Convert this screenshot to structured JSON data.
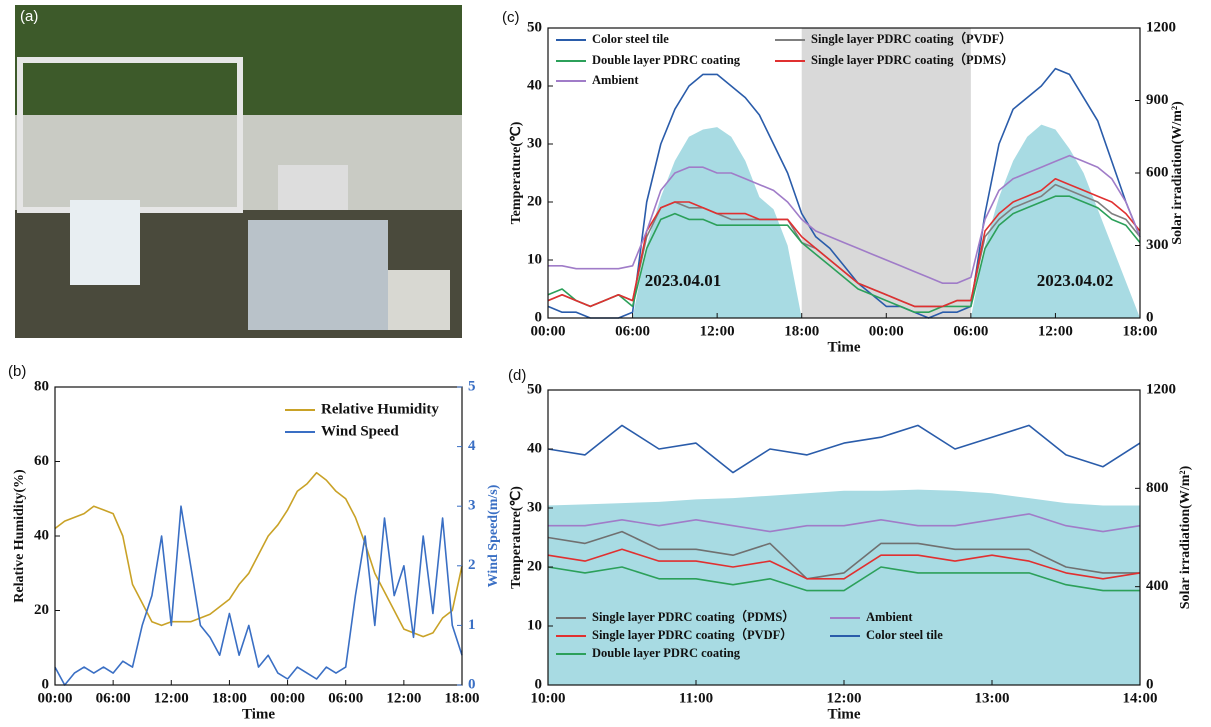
{
  "photo_label": "(a)",
  "chart_data": [
    {
      "type": "line",
      "panel_label": "(b)",
      "x_label": "Time",
      "y_label": "Relative Humidity(%)",
      "y2_label": "Wind Speed(m/s)",
      "legend": "upper right",
      "x": [
        0,
        1,
        2,
        3,
        4,
        5,
        6,
        7,
        8,
        9,
        10,
        11,
        12,
        13,
        14,
        15,
        16,
        17,
        18,
        19,
        20,
        21,
        22,
        23,
        24,
        25,
        26,
        27,
        28,
        29,
        30,
        31,
        32,
        33,
        34,
        35,
        36,
        37,
        38,
        39,
        40,
        41,
        42
      ],
      "xlim": [
        0,
        42
      ],
      "xticks": [
        {
          "value": 0,
          "label": "00:00"
        },
        {
          "value": 6,
          "label": "06:00"
        },
        {
          "value": 12,
          "label": "12:00"
        },
        {
          "value": 18,
          "label": "18:00"
        },
        {
          "value": 24,
          "label": "00:00"
        },
        {
          "value": 30,
          "label": "06:00"
        },
        {
          "value": 36,
          "label": "12:00"
        },
        {
          "value": 42,
          "label": "18:00"
        }
      ],
      "ylim": [
        0,
        80
      ],
      "yticks": [
        0,
        20,
        40,
        60,
        80
      ],
      "y2lim": [
        0,
        5
      ],
      "y2ticks": [
        0,
        1,
        2,
        3,
        4,
        5
      ],
      "y2_color": "#3a6fc4",
      "series": [
        {
          "name": "Relative Humidity",
          "color": "#c9a227",
          "values": [
            42,
            44,
            45,
            46,
            48,
            47,
            46,
            40,
            27,
            22,
            17,
            16,
            17,
            17,
            17,
            18,
            19,
            21,
            23,
            27,
            30,
            35,
            40,
            43,
            47,
            52,
            54,
            57,
            55,
            52,
            50,
            45,
            38,
            30,
            25,
            20,
            15,
            14,
            13,
            14,
            18,
            20,
            32
          ]
        },
        {
          "name": "Wind Speed",
          "color": "#3a6fc4",
          "axis": "y2",
          "values": [
            0.3,
            0,
            0.2,
            0.3,
            0.2,
            0.3,
            0.2,
            0.4,
            0.3,
            1,
            1.5,
            2.5,
            1,
            3,
            2,
            1,
            0.8,
            0.5,
            1.2,
            0.5,
            1,
            0.3,
            0.5,
            0.2,
            0.1,
            0.3,
            0.2,
            0.1,
            0.3,
            0.2,
            0.3,
            1.5,
            2.5,
            1,
            2.8,
            1.5,
            2,
            0.8,
            2.5,
            1.2,
            2.8,
            1,
            0.5
          ]
        }
      ]
    },
    {
      "type": "line",
      "panel_label": "(c)",
      "x_label": "Time",
      "y_label": "Temperature(℃)",
      "y2_label": "Solar irradiation(W/m²)",
      "legend": "upper left",
      "x": [
        0,
        1,
        2,
        3,
        4,
        5,
        6,
        7,
        8,
        9,
        10,
        11,
        12,
        13,
        14,
        15,
        16,
        17,
        18,
        19,
        20,
        21,
        22,
        23,
        24,
        25,
        26,
        27,
        28,
        29,
        30,
        31,
        32,
        33,
        34,
        35,
        36,
        37,
        38,
        39,
        40,
        41,
        42
      ],
      "xlim": [
        0,
        42
      ],
      "xticks": [
        {
          "value": 0,
          "label": "00:00"
        },
        {
          "value": 6,
          "label": "06:00"
        },
        {
          "value": 12,
          "label": "12:00"
        },
        {
          "value": 18,
          "label": "18:00"
        },
        {
          "value": 24,
          "label": "00:00"
        },
        {
          "value": 30,
          "label": "06:00"
        },
        {
          "value": 36,
          "label": "12:00"
        },
        {
          "value": 42,
          "label": "18:00"
        }
      ],
      "ylim": [
        0,
        50
      ],
      "yticks": [
        0,
        10,
        20,
        30,
        40,
        50
      ],
      "y2lim": [
        0,
        1200
      ],
      "y2ticks": [
        0,
        300,
        600,
        900,
        1200
      ],
      "shaded_span": [
        18,
        30
      ],
      "shade_color": "#d9d9d9",
      "annotations": [
        "2023.04.01",
        "2023.04.02"
      ],
      "area": {
        "color": "#a8dbe3",
        "axis": "y2",
        "values": [
          0,
          0,
          0,
          0,
          0,
          0,
          0,
          300,
          500,
          650,
          750,
          780,
          790,
          750,
          650,
          500,
          450,
          300,
          0,
          0,
          0,
          0,
          0,
          0,
          0,
          0,
          0,
          0,
          0,
          0,
          0,
          300,
          500,
          650,
          750,
          800,
          780,
          700,
          600,
          450,
          300,
          150,
          0
        ]
      },
      "series": [
        {
          "name": "Color steel tile",
          "color": "#2a5caa",
          "values": [
            2,
            1,
            1,
            0,
            0,
            0,
            1,
            20,
            30,
            36,
            40,
            42,
            42,
            40,
            38,
            35,
            30,
            25,
            18,
            14,
            12,
            9,
            6,
            4,
            2,
            2,
            1,
            0,
            1,
            1,
            2,
            18,
            30,
            36,
            38,
            40,
            43,
            42,
            38,
            34,
            27,
            20,
            14
          ]
        },
        {
          "name": "Single layer PDRC coating（PVDF）",
          "color": "#7f7f7f",
          "values": [
            3,
            4,
            3,
            2,
            3,
            4,
            3,
            14,
            19,
            20,
            19,
            19,
            18,
            17,
            17,
            17,
            17,
            17,
            13,
            12,
            10,
            8,
            6,
            5,
            4,
            3,
            2,
            2,
            2,
            3,
            3,
            14,
            17,
            19,
            20,
            21,
            23,
            22,
            21,
            20,
            18,
            17,
            14
          ]
        },
        {
          "name": "Double layer PDRC coating",
          "color": "#2ca05a",
          "values": [
            4,
            5,
            3,
            2,
            3,
            4,
            2,
            12,
            17,
            18,
            17,
            17,
            16,
            16,
            16,
            16,
            16,
            16,
            13,
            11,
            9,
            7,
            5,
            4,
            3,
            2,
            1,
            1,
            2,
            2,
            2,
            12,
            16,
            18,
            19,
            20,
            21,
            21,
            20,
            19,
            17,
            16,
            13
          ]
        },
        {
          "name": "Single layer PDRC coating（PDMS）",
          "color": "#e03030",
          "values": [
            3,
            4,
            3,
            2,
            3,
            4,
            3,
            15,
            19,
            20,
            20,
            19,
            18,
            18,
            18,
            17,
            17,
            17,
            14,
            12,
            10,
            8,
            6,
            5,
            4,
            3,
            2,
            2,
            2,
            3,
            3,
            15,
            18,
            20,
            21,
            22,
            24,
            23,
            22,
            21,
            20,
            18,
            15
          ]
        },
        {
          "name": "Ambient",
          "color": "#a07cc8",
          "values": [
            9,
            9,
            8.5,
            8.5,
            8.5,
            8.5,
            9,
            15,
            22,
            25,
            26,
            26,
            25,
            25,
            24,
            23,
            22,
            20,
            17,
            15,
            14,
            13,
            12,
            11,
            10,
            9,
            8,
            7,
            6,
            6,
            7,
            17,
            22,
            24,
            25,
            26,
            27,
            28,
            27,
            26,
            24,
            20,
            14
          ]
        }
      ]
    },
    {
      "type": "line",
      "panel_label": "(d)",
      "x_label": "Time",
      "y_label": "Temperature(℃)",
      "y2_label": "Solar irradiation(W/m²)",
      "legend": "lower left",
      "x": [
        10,
        10.25,
        10.5,
        10.75,
        11,
        11.25,
        11.5,
        11.75,
        12,
        12.25,
        12.5,
        12.75,
        13,
        13.25,
        13.5,
        13.75,
        14
      ],
      "xlim": [
        10,
        14
      ],
      "xticks": [
        {
          "value": 10,
          "label": "10:00"
        },
        {
          "value": 11,
          "label": "11:00"
        },
        {
          "value": 12,
          "label": "12:00"
        },
        {
          "value": 13,
          "label": "13:00"
        },
        {
          "value": 14,
          "label": "14:00"
        }
      ],
      "ylim": [
        0,
        50
      ],
      "yticks": [
        0,
        10,
        20,
        30,
        40,
        50
      ],
      "y2lim": [
        0,
        1200
      ],
      "y2ticks": [
        0,
        400,
        800,
        1200
      ],
      "area": {
        "color": "#a8dbe3",
        "axis": "y2",
        "values": [
          730,
          735,
          740,
          745,
          755,
          760,
          770,
          780,
          790,
          790,
          795,
          790,
          780,
          760,
          740,
          730,
          730
        ]
      },
      "series": [
        {
          "name": "Single layer PDRC coating（PDMS）",
          "color": "#707070",
          "values": [
            25,
            24,
            26,
            23,
            23,
            22,
            24,
            18,
            19,
            24,
            24,
            23,
            23,
            23,
            20,
            19,
            19
          ]
        },
        {
          "name": "Ambient",
          "color": "#a07cc8",
          "values": [
            27,
            27,
            28,
            27,
            28,
            27,
            26,
            27,
            27,
            28,
            27,
            27,
            28,
            29,
            27,
            26,
            27
          ]
        },
        {
          "name": "Single layer PDRC coating（PVDF）",
          "color": "#e03030",
          "values": [
            22,
            21,
            23,
            21,
            21,
            20,
            21,
            18,
            18,
            22,
            22,
            21,
            22,
            21,
            19,
            18,
            19
          ]
        },
        {
          "name": "Color steel tile",
          "color": "#2a5caa",
          "values": [
            40,
            39,
            44,
            40,
            41,
            36,
            40,
            39,
            41,
            42,
            44,
            40,
            42,
            44,
            39,
            37,
            41
          ]
        },
        {
          "name": "Double layer PDRC coating",
          "color": "#2ca05a",
          "values": [
            20,
            19,
            20,
            18,
            18,
            17,
            18,
            16,
            16,
            20,
            19,
            19,
            19,
            19,
            17,
            16,
            16
          ]
        }
      ]
    }
  ]
}
